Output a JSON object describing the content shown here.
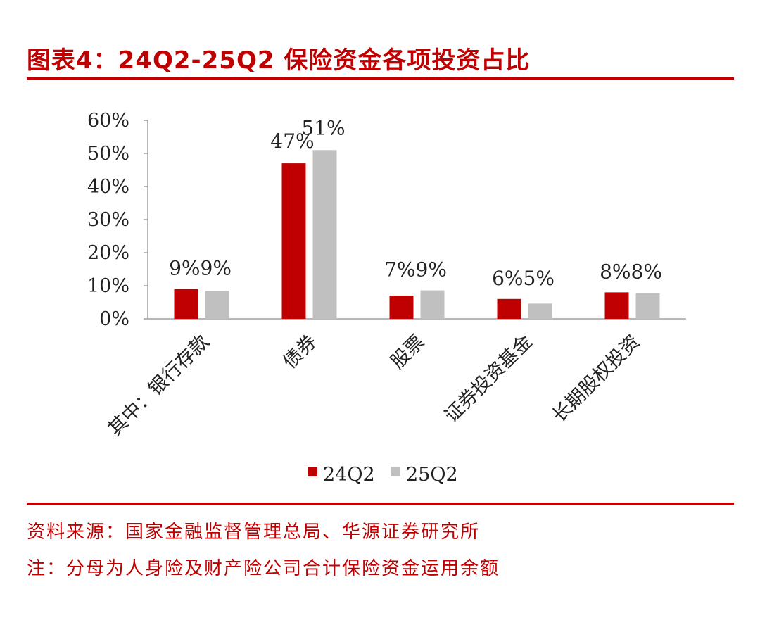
{
  "title": "图表4：24Q2-25Q2 保险资金各项投资占比",
  "source": "资料来源：国家金融监督管理总局、华源证券研究所",
  "note": "注：分母为人身险及财产险公司合计保险资金运用余额",
  "colors": {
    "accent": "#c00000",
    "series_24Q2": "#c00000",
    "series_25Q2": "#c0c0c0"
  },
  "chart_data": {
    "type": "bar",
    "categories": [
      "其中：银行存款",
      "债券",
      "股票",
      "证券投资基金",
      "长期股权投资"
    ],
    "series": [
      {
        "name": "24Q2",
        "values": [
          9,
          47,
          7,
          6,
          8
        ],
        "labels": [
          "9%",
          "47%",
          "7%",
          "6%",
          "8%"
        ]
      },
      {
        "name": "25Q2",
        "values": [
          8.5,
          51,
          8.6,
          4.6,
          7.7
        ],
        "labels": [
          "9%",
          "51%",
          "9%",
          "5%",
          "8%"
        ]
      }
    ],
    "yticks": [
      "0%",
      "10%",
      "20%",
      "30%",
      "40%",
      "50%",
      "60%"
    ],
    "ylim": [
      0,
      60
    ],
    "legend_position": "bottom",
    "grid": false
  }
}
